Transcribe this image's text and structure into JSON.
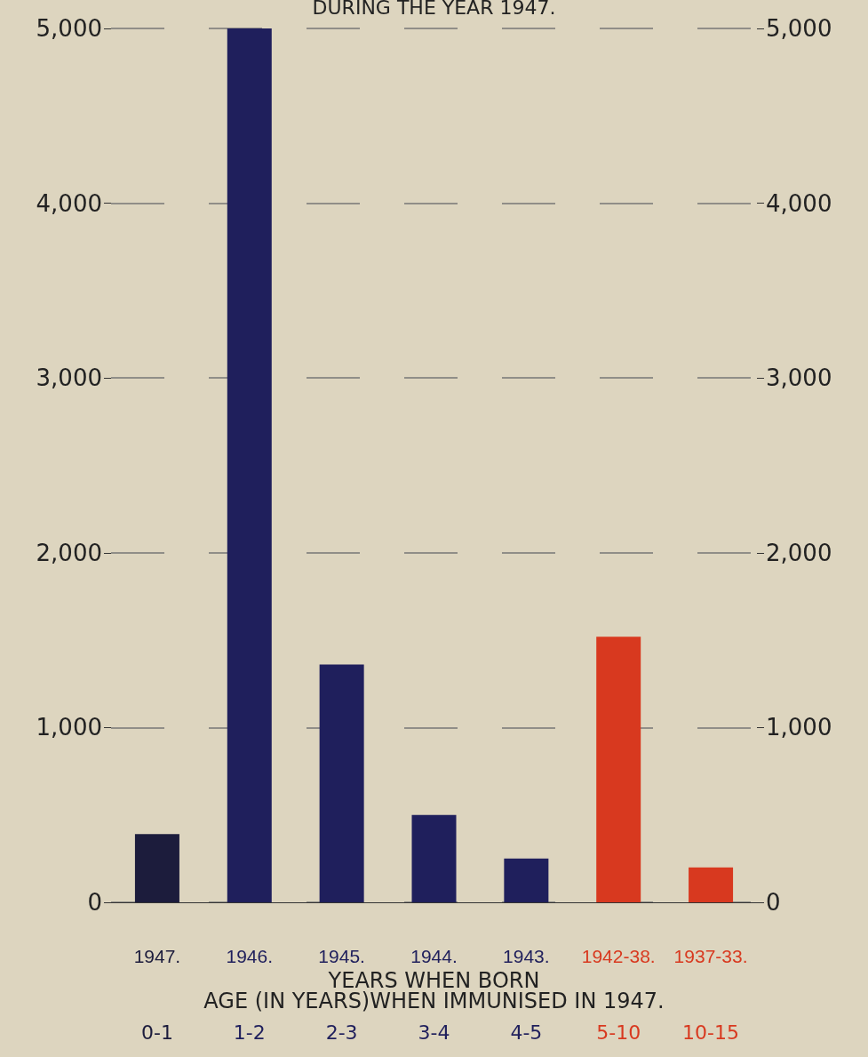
{
  "chart_data": {
    "type": "bar",
    "title": "DURING THE YEAR 1947.",
    "xlabel": "YEARS WHEN BORN",
    "categories": [
      "1947.",
      "1946.",
      "1945.",
      "1944.",
      "1943.",
      "1942-38.",
      "1937-33."
    ],
    "values": [
      390,
      5000,
      1360,
      500,
      250,
      1520,
      200
    ],
    "colors": [
      "#1c1c3c",
      "#1f1f5c",
      "#1f1f5c",
      "#1f1f5c",
      "#1f1f5c",
      "#d8391f",
      "#d8391f"
    ],
    "annotations": [
      "AGE (IN YEARS)WHEN IMMUNISED IN 1947.",
      "0-1",
      "1-2",
      "2-3",
      "3-4",
      "4-5",
      "5-10",
      "10-15"
    ],
    "ylim": [
      0,
      5000
    ],
    "yticks": [
      0,
      {
        "value": 1000,
        "label": "1,000"
      },
      {
        "value": 2000,
        "label": "2,000"
      },
      {
        "value": 3000,
        "label": "3,000"
      },
      {
        "value": 4000,
        "label": "4,000"
      },
      {
        "value": 5000,
        "label": "5,000"
      }
    ],
    "y2lim": [
      0,
      5000
    ],
    "y2ticks": [
      0,
      {
        "value": 1000,
        "label": "1,000"
      },
      {
        "value": 2000,
        "label": "2,000"
      },
      {
        "value": 3000,
        "label": "3,000"
      },
      {
        "value": 4000,
        "label": "4,000"
      },
      {
        "value": 5000,
        "label": "5,000"
      }
    ],
    "grid": "y"
  }
}
